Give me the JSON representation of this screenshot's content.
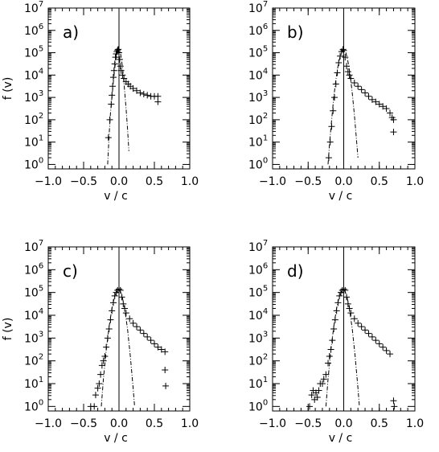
{
  "chart_data": [
    {
      "type": "scatter",
      "panel_label": "a)",
      "xlabel": "v / c",
      "ylabel": "f (v)",
      "xlim": [
        -1.0,
        1.0
      ],
      "ylim_log10": [
        -0.2,
        7
      ],
      "y_scale": "log",
      "x_ticks": [
        "−1.0",
        "−0.5",
        "0.0",
        "0.5",
        "1.0"
      ],
      "y_ticks": [
        "10",
        "10",
        "10",
        "10",
        "10",
        "10",
        "10",
        "10"
      ],
      "y_tick_exponents": [
        "0",
        "1",
        "2",
        "3",
        "4",
        "5",
        "6",
        "7"
      ],
      "series": [
        {
          "marker": "plus",
          "x": [
            -0.15,
            -0.13,
            -0.11,
            -0.1,
            -0.09,
            -0.08,
            -0.07,
            -0.06,
            -0.05,
            -0.04,
            -0.03,
            -0.02,
            -0.01,
            0.0,
            0.01,
            0.02,
            0.03,
            0.05,
            0.07,
            0.1,
            0.13,
            0.16,
            0.2,
            0.25,
            0.3,
            0.35,
            0.4,
            0.45,
            0.5,
            0.55,
            0.55
          ],
          "log10_y": [
            1.2,
            2.0,
            2.7,
            3.1,
            3.5,
            3.9,
            4.2,
            4.5,
            4.8,
            4.95,
            5.05,
            5.12,
            5.15,
            5.0,
            4.7,
            4.4,
            4.2,
            4.0,
            3.85,
            3.7,
            3.6,
            3.5,
            3.4,
            3.3,
            3.2,
            3.15,
            3.1,
            3.05,
            3.05,
            3.05,
            2.8
          ]
        },
        {
          "line_style": "dash-dot",
          "x": [
            -0.16,
            -0.14,
            -0.12,
            -0.1,
            -0.08,
            -0.06,
            -0.04,
            -0.02,
            0.0,
            0.02,
            0.04,
            0.06,
            0.08,
            0.1,
            0.12,
            0.14
          ],
          "log10_y": [
            0.0,
            1.3,
            2.3,
            3.0,
            3.7,
            4.3,
            4.8,
            5.05,
            5.15,
            5.0,
            4.6,
            4.0,
            3.3,
            2.5,
            1.6,
            0.6
          ]
        }
      ]
    },
    {
      "type": "scatter",
      "panel_label": "b)",
      "xlabel": "v / c",
      "ylabel": "",
      "xlim": [
        -1.0,
        1.0
      ],
      "ylim_log10": [
        -0.2,
        7
      ],
      "y_scale": "log",
      "x_ticks": [
        "−1.0",
        "−0.5",
        "0.0",
        "0.5",
        "1.0"
      ],
      "y_ticks": [
        "10",
        "10",
        "10",
        "10",
        "10",
        "10",
        "10",
        "10"
      ],
      "y_tick_exponents": [
        "0",
        "1",
        "2",
        "3",
        "4",
        "5",
        "6",
        "7"
      ],
      "series": [
        {
          "marker": "plus",
          "x": [
            -0.21,
            -0.19,
            -0.17,
            -0.15,
            -0.13,
            -0.11,
            -0.09,
            -0.07,
            -0.05,
            -0.03,
            -0.01,
            0.0,
            0.02,
            0.04,
            0.06,
            0.08,
            0.1,
            0.15,
            0.2,
            0.25,
            0.3,
            0.35,
            0.4,
            0.45,
            0.5,
            0.55,
            0.6,
            0.65,
            0.68,
            0.7,
            0.7
          ],
          "log10_y": [
            0.3,
            1.0,
            1.7,
            2.4,
            3.0,
            3.6,
            4.1,
            4.55,
            4.85,
            5.05,
            5.15,
            5.1,
            4.8,
            4.4,
            4.15,
            4.0,
            3.85,
            3.65,
            3.5,
            3.35,
            3.2,
            3.05,
            2.9,
            2.8,
            2.7,
            2.6,
            2.5,
            2.3,
            2.1,
            2.0,
            1.45
          ]
        },
        {
          "line_style": "dash-dot",
          "x": [
            -0.22,
            -0.2,
            -0.17,
            -0.14,
            -0.11,
            -0.08,
            -0.05,
            -0.02,
            0.0,
            0.03,
            0.06,
            0.09,
            0.12,
            0.15,
            0.18,
            0.2
          ],
          "log10_y": [
            0.0,
            0.9,
            2.0,
            3.0,
            3.8,
            4.4,
            4.85,
            5.1,
            5.15,
            5.0,
            4.6,
            4.0,
            3.2,
            2.2,
            1.1,
            0.3
          ]
        }
      ]
    },
    {
      "type": "scatter",
      "panel_label": "c)",
      "xlabel": "v / c",
      "ylabel": "f (v)",
      "xlim": [
        -1.0,
        1.0
      ],
      "ylim_log10": [
        -0.2,
        7
      ],
      "y_scale": "log",
      "x_ticks": [
        "−1.0",
        "−0.5",
        "0.0",
        "0.5",
        "1.0"
      ],
      "y_ticks": [
        "10",
        "10",
        "10",
        "10",
        "10",
        "10",
        "10",
        "10"
      ],
      "y_tick_exponents": [
        "0",
        "1",
        "2",
        "3",
        "4",
        "5",
        "6",
        "7"
      ],
      "series": [
        {
          "marker": "plus",
          "x": [
            -0.4,
            -0.35,
            -0.33,
            -0.3,
            -0.28,
            -0.26,
            -0.24,
            -0.22,
            -0.2,
            -0.18,
            -0.16,
            -0.14,
            -0.12,
            -0.1,
            -0.08,
            -0.06,
            -0.04,
            -0.02,
            0.0,
            0.02,
            0.04,
            0.06,
            0.08,
            0.1,
            0.15,
            0.2,
            0.25,
            0.3,
            0.35,
            0.4,
            0.45,
            0.5,
            0.55,
            0.6,
            0.65,
            0.65,
            0.66
          ],
          "log10_y": [
            0.0,
            0.0,
            0.5,
            0.8,
            1.0,
            1.4,
            1.8,
            2.0,
            2.2,
            2.6,
            3.0,
            3.4,
            3.8,
            4.2,
            4.55,
            4.85,
            5.0,
            5.1,
            5.15,
            5.1,
            4.8,
            4.5,
            4.3,
            4.1,
            3.85,
            3.65,
            3.5,
            3.35,
            3.2,
            3.05,
            2.9,
            2.75,
            2.6,
            2.5,
            2.4,
            1.6,
            0.9
          ]
        },
        {
          "line_style": "dash-dot",
          "x": [
            -0.25,
            -0.22,
            -0.18,
            -0.14,
            -0.1,
            -0.06,
            -0.02,
            0.0,
            0.04,
            0.08,
            0.12,
            0.16,
            0.2,
            0.22
          ],
          "log10_y": [
            0.0,
            1.2,
            2.5,
            3.5,
            4.3,
            4.85,
            5.1,
            5.15,
            4.9,
            4.3,
            3.4,
            2.2,
            0.8,
            0.0
          ]
        }
      ]
    },
    {
      "type": "scatter",
      "panel_label": "d)",
      "xlabel": "v / c",
      "ylabel": "",
      "xlim": [
        -1.0,
        1.0
      ],
      "ylim_log10": [
        -0.2,
        7
      ],
      "y_scale": "log",
      "x_ticks": [
        "−1.0",
        "−0.5",
        "0.0",
        "0.5",
        "1.0"
      ],
      "y_ticks": [
        "10",
        "10",
        "10",
        "10",
        "10",
        "10",
        "10",
        "10"
      ],
      "y_tick_exponents": [
        "0",
        "1",
        "2",
        "3",
        "4",
        "5",
        "6",
        "7"
      ],
      "series": [
        {
          "marker": "plus",
          "x": [
            -0.48,
            -0.45,
            -0.43,
            -0.41,
            -0.39,
            -0.37,
            -0.35,
            -0.33,
            -0.3,
            -0.28,
            -0.25,
            -0.22,
            -0.2,
            -0.18,
            -0.16,
            -0.14,
            -0.12,
            -0.1,
            -0.08,
            -0.06,
            -0.04,
            -0.02,
            0.0,
            0.02,
            0.04,
            0.06,
            0.08,
            0.1,
            0.15,
            0.2,
            0.25,
            0.3,
            0.35,
            0.4,
            0.45,
            0.5,
            0.55,
            0.6,
            0.65,
            0.7,
            0.71
          ],
          "log10_y": [
            0.0,
            0.5,
            0.7,
            0.3,
            0.6,
            0.4,
            0.7,
            1.0,
            1.0,
            1.2,
            1.4,
            1.9,
            2.2,
            2.5,
            2.9,
            3.4,
            3.8,
            4.2,
            4.55,
            4.85,
            5.0,
            5.1,
            5.15,
            5.1,
            4.8,
            4.5,
            4.3,
            4.1,
            3.85,
            3.65,
            3.5,
            3.35,
            3.2,
            3.05,
            2.9,
            2.75,
            2.6,
            2.45,
            2.3,
            0.25,
            0.0
          ]
        },
        {
          "line_style": "dash-dot",
          "x": [
            -0.25,
            -0.22,
            -0.18,
            -0.14,
            -0.1,
            -0.06,
            -0.02,
            0.0,
            0.04,
            0.08,
            0.12,
            0.16,
            0.2,
            0.22
          ],
          "log10_y": [
            0.0,
            1.2,
            2.5,
            3.5,
            4.3,
            4.85,
            5.1,
            5.15,
            4.9,
            4.3,
            3.4,
            2.2,
            0.8,
            0.0
          ]
        }
      ]
    }
  ]
}
